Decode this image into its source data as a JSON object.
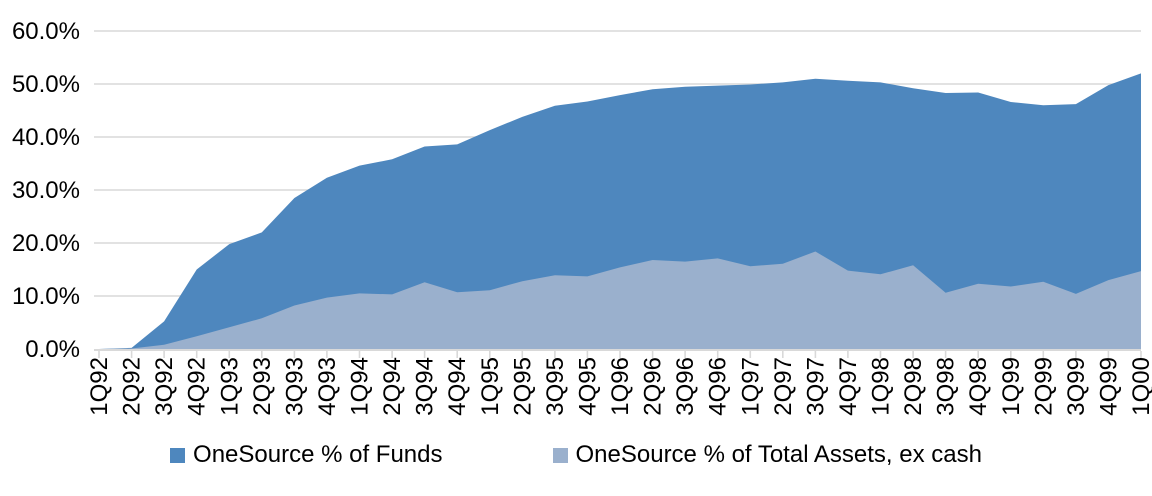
{
  "chart_data": {
    "type": "area",
    "title": "",
    "xlabel": "",
    "ylabel": "",
    "categories": [
      "1Q92",
      "2Q92",
      "3Q92",
      "4Q92",
      "1Q93",
      "2Q93",
      "3Q93",
      "4Q93",
      "1Q94",
      "2Q94",
      "3Q94",
      "4Q94",
      "1Q95",
      "2Q95",
      "3Q95",
      "4Q95",
      "1Q96",
      "2Q96",
      "3Q96",
      "4Q96",
      "1Q97",
      "2Q97",
      "3Q97",
      "4Q97",
      "1Q98",
      "2Q98",
      "3Q98",
      "4Q98",
      "1Q99",
      "2Q99",
      "3Q99",
      "4Q99",
      "1Q00"
    ],
    "series": [
      {
        "name": "OneSource % of Funds",
        "color": "#4E87BE",
        "values": [
          0.0,
          0.2,
          5.2,
          15.0,
          19.8,
          22.0,
          28.5,
          32.3,
          34.6,
          35.8,
          38.2,
          38.6,
          41.3,
          43.8,
          45.9,
          46.7,
          47.9,
          49.0,
          49.5,
          49.7,
          49.9,
          50.3,
          51.0,
          50.6,
          50.3,
          49.2,
          48.3,
          48.4,
          46.6,
          46.0,
          46.2,
          49.8,
          52.0
        ]
      },
      {
        "name": "OneSource % of Total Assets, ex cash",
        "color": "#9AB0CD",
        "values": [
          0.0,
          0.1,
          0.8,
          2.4,
          4.1,
          5.8,
          8.2,
          9.7,
          10.5,
          10.3,
          12.6,
          10.7,
          11.1,
          12.8,
          13.9,
          13.7,
          15.4,
          16.8,
          16.5,
          17.1,
          15.6,
          16.1,
          18.4,
          14.8,
          14.1,
          15.8,
          10.6,
          12.3,
          11.8,
          12.7,
          10.4,
          13.0,
          14.7
        ]
      }
    ],
    "series_layout": "overlapped",
    "ylim": [
      0,
      60
    ],
    "ytick_labels": [
      "0.0%",
      "10.0%",
      "20.0%",
      "30.0%",
      "40.0%",
      "50.0%",
      "60.0%"
    ],
    "grid": "horizontal",
    "legend_position": "bottom",
    "colors": {
      "gridline": "#D9D9D9",
      "axis_line": "#D9D9D9",
      "tick_mark": "#D9D9D9",
      "text": "#000000",
      "background": "#FFFFFF"
    }
  }
}
